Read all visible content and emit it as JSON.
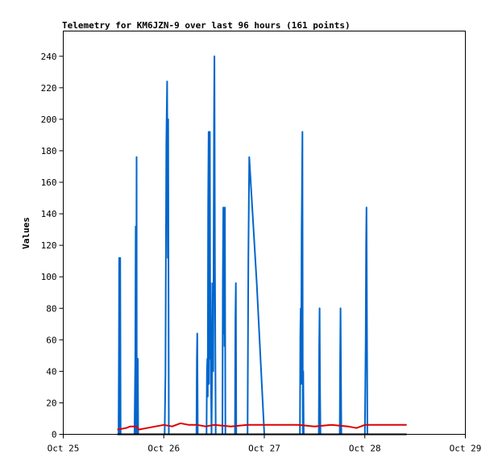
{
  "chart_data": {
    "type": "line",
    "title": "Telemetry for KM6JZN-9 over last 96 hours (161 points)",
    "xlabel": "",
    "ylabel": "Values",
    "x_range_hours": [
      0,
      96
    ],
    "x_ticks": [
      {
        "label": "Oct 25",
        "hours": 0
      },
      {
        "label": "Oct 26",
        "hours": 24
      },
      {
        "label": "Oct 27",
        "hours": 48
      },
      {
        "label": "Oct 28",
        "hours": 72
      },
      {
        "label": "Oct 29",
        "hours": 96
      }
    ],
    "ylim": [
      0,
      256
    ],
    "y_ticks": [
      0,
      20,
      40,
      60,
      80,
      100,
      120,
      140,
      160,
      180,
      200,
      220,
      240
    ],
    "grid": false,
    "legend": "none",
    "series": [
      {
        "color": "#0066cc",
        "points": [
          [
            13.2,
            0
          ],
          [
            13.3,
            56
          ],
          [
            13.35,
            112
          ],
          [
            13.45,
            0
          ],
          [
            13.5,
            84
          ],
          [
            13.6,
            112
          ],
          [
            13.7,
            0
          ],
          [
            17.0,
            0
          ],
          [
            17.2,
            48
          ],
          [
            17.3,
            132
          ],
          [
            17.4,
            0
          ],
          [
            17.5,
            176
          ],
          [
            17.55,
            32
          ],
          [
            17.7,
            0
          ],
          [
            17.8,
            48
          ],
          [
            17.9,
            0
          ],
          [
            24.2,
            0
          ],
          [
            24.4,
            38
          ],
          [
            24.6,
            185
          ],
          [
            24.8,
            224
          ],
          [
            24.95,
            112
          ],
          [
            25.05,
            200
          ],
          [
            25.2,
            0
          ],
          [
            25.4,
            0
          ],
          [
            31.8,
            0
          ],
          [
            31.9,
            48
          ],
          [
            32.0,
            64
          ],
          [
            32.1,
            0
          ],
          [
            34.2,
            0
          ],
          [
            34.3,
            40
          ],
          [
            34.4,
            48
          ],
          [
            34.5,
            24
          ],
          [
            34.6,
            145
          ],
          [
            34.7,
            192
          ],
          [
            34.8,
            32
          ],
          [
            34.9,
            160
          ],
          [
            35.0,
            192
          ],
          [
            35.1,
            48
          ],
          [
            35.2,
            96
          ],
          [
            35.3,
            24
          ],
          [
            35.4,
            0
          ],
          [
            35.6,
            60
          ],
          [
            35.7,
            96
          ],
          [
            35.8,
            40
          ],
          [
            35.9,
            120
          ],
          [
            36.0,
            200
          ],
          [
            36.1,
            240
          ],
          [
            36.2,
            112
          ],
          [
            36.3,
            56
          ],
          [
            36.4,
            0
          ],
          [
            38.0,
            0
          ],
          [
            38.1,
            96
          ],
          [
            38.2,
            144
          ],
          [
            38.3,
            64
          ],
          [
            38.4,
            128
          ],
          [
            38.5,
            56
          ],
          [
            38.6,
            144
          ],
          [
            38.7,
            0
          ],
          [
            41.0,
            0
          ],
          [
            41.1,
            72
          ],
          [
            41.2,
            96
          ],
          [
            41.3,
            0
          ],
          [
            44.0,
            0
          ],
          [
            44.2,
            112
          ],
          [
            44.4,
            176
          ],
          [
            46.2,
            96
          ],
          [
            48.0,
            0
          ],
          [
            56.5,
            0
          ],
          [
            56.6,
            64
          ],
          [
            56.7,
            80
          ],
          [
            56.8,
            32
          ],
          [
            56.9,
            128
          ],
          [
            57.0,
            160
          ],
          [
            57.1,
            192
          ],
          [
            57.2,
            0
          ],
          [
            57.3,
            40
          ],
          [
            57.4,
            0
          ],
          [
            61.0,
            0
          ],
          [
            61.1,
            56
          ],
          [
            61.2,
            80
          ],
          [
            61.3,
            32
          ],
          [
            61.4,
            0
          ],
          [
            66.0,
            0
          ],
          [
            66.1,
            48
          ],
          [
            66.2,
            80
          ],
          [
            66.3,
            40
          ],
          [
            66.4,
            0
          ],
          [
            72.0,
            0
          ],
          [
            72.2,
            60
          ],
          [
            72.3,
            120
          ],
          [
            72.4,
            144
          ],
          [
            72.5,
            80
          ],
          [
            72.6,
            0
          ]
        ]
      },
      {
        "color": "#dd0000",
        "points": [
          [
            12.9,
            3
          ],
          [
            15.0,
            4
          ],
          [
            16.0,
            5
          ],
          [
            17.5,
            5
          ],
          [
            18.0,
            3
          ],
          [
            20.0,
            4
          ],
          [
            22.0,
            5
          ],
          [
            24.0,
            6
          ],
          [
            26.0,
            5
          ],
          [
            28.0,
            7
          ],
          [
            30.0,
            6
          ],
          [
            32.0,
            6
          ],
          [
            34.0,
            5
          ],
          [
            36.0,
            6
          ],
          [
            40.0,
            5
          ],
          [
            44.0,
            6
          ],
          [
            48.0,
            6
          ],
          [
            56.0,
            6
          ],
          [
            60.0,
            5
          ],
          [
            64.0,
            6
          ],
          [
            68.0,
            5
          ],
          [
            70.0,
            4
          ],
          [
            72.0,
            6
          ],
          [
            76.0,
            6
          ],
          [
            82.0,
            6
          ]
        ]
      },
      {
        "color": "#000000",
        "points": [
          [
            12.9,
            0
          ],
          [
            82.0,
            0
          ]
        ]
      }
    ]
  }
}
